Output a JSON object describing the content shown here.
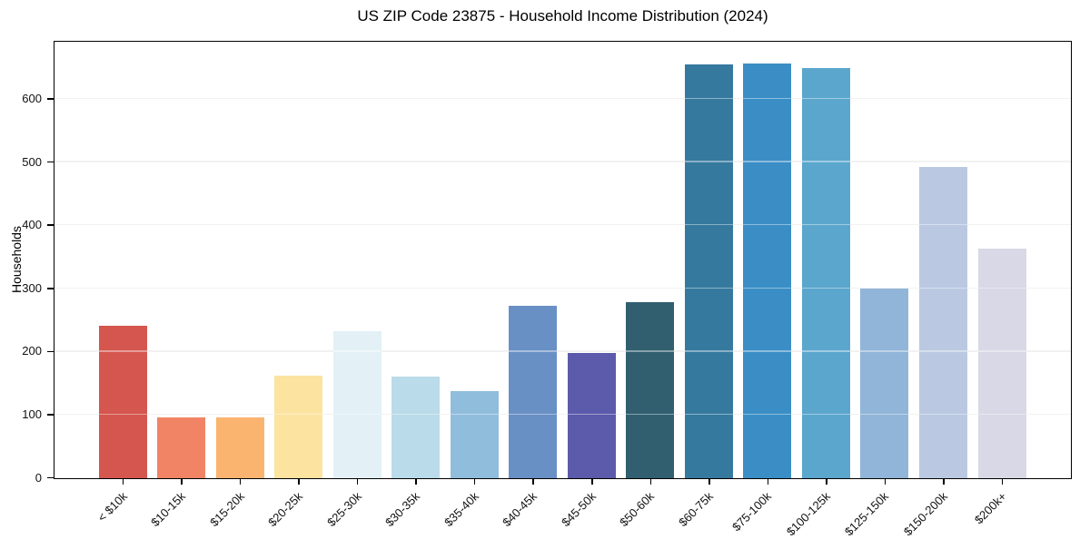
{
  "chart_data": {
    "type": "bar",
    "title": "US ZIP Code 23875 - Household Income Distribution (2024)",
    "xlabel": "",
    "ylabel": "Households",
    "categories": [
      "< $10k",
      "$10-15k",
      "$15-20k",
      "$20-25k",
      "$25-30k",
      "$30-35k",
      "$35-40k",
      "$40-45k",
      "$45-50k",
      "$50-60k",
      "$60-75k",
      "$75-100k",
      "$100-125k",
      "$125-150k",
      "$150-200k",
      "$200k+"
    ],
    "values": [
      241,
      97,
      97,
      163,
      233,
      161,
      138,
      273,
      199,
      279,
      655,
      657,
      650,
      300,
      493,
      364
    ],
    "bar_colors": [
      "#d4564e",
      "#f08465",
      "#fab470",
      "#fde3a0",
      "#e3f1f6",
      "#badbe9",
      "#91bddc",
      "#6990c5",
      "#5c5aab",
      "#315f70",
      "#36799f",
      "#3a8ec5",
      "#5ba6cd",
      "#91b5d8",
      "#bac9e1",
      "#d8d8e6"
    ],
    "ylim": [
      0,
      690
    ],
    "yticks": [
      0,
      100,
      200,
      300,
      400,
      500,
      600
    ],
    "x_tick_rotation_deg": 45,
    "grid": "horizontal-only",
    "legend": "none",
    "plot_background": "#ffffff",
    "gridline_color": "#e9e9e9",
    "spine_color": "#000000"
  }
}
